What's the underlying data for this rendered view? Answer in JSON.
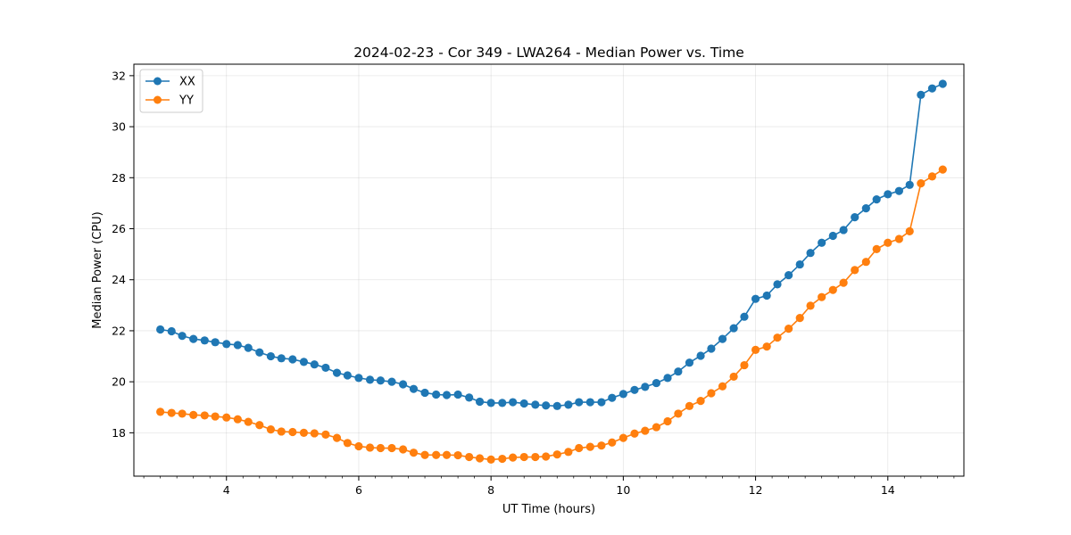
{
  "chart_data": {
    "type": "line",
    "title": "2024-02-23 - Cor 349 - LWA264 - Median Power vs. Time",
    "xlabel": "UT Time (hours)",
    "ylabel": "Median Power (CPU)",
    "xlim": [
      2.6,
      15.15
    ],
    "ylim": [
      16.3,
      32.45
    ],
    "xticks": [
      4,
      6,
      8,
      10,
      12,
      14
    ],
    "xtick_labels": [
      "4",
      "6",
      "8",
      "10",
      "12",
      "14"
    ],
    "yticks": [
      18,
      20,
      22,
      24,
      26,
      28,
      30,
      32
    ],
    "ytick_labels": [
      "18",
      "20",
      "22",
      "24",
      "26",
      "28",
      "30",
      "32"
    ],
    "grid": true,
    "legend_position": "top-left",
    "x": [
      3.0,
      3.17,
      3.33,
      3.5,
      3.67,
      3.83,
      4.0,
      4.17,
      4.33,
      4.5,
      4.67,
      4.83,
      5.0,
      5.17,
      5.33,
      5.5,
      5.67,
      5.83,
      6.0,
      6.17,
      6.33,
      6.5,
      6.67,
      6.83,
      7.0,
      7.17,
      7.33,
      7.5,
      7.67,
      7.83,
      8.0,
      8.17,
      8.33,
      8.5,
      8.67,
      8.83,
      9.0,
      9.17,
      9.33,
      9.5,
      9.67,
      9.83,
      10.0,
      10.17,
      10.33,
      10.5,
      10.67,
      10.83,
      11.0,
      11.17,
      11.33,
      11.5,
      11.67,
      11.83,
      12.0,
      12.17,
      12.33,
      12.5,
      12.67,
      12.83,
      13.0,
      13.17,
      13.33,
      13.5,
      13.67,
      13.83,
      14.0,
      14.17,
      14.33,
      14.5,
      14.67,
      14.83
    ],
    "series": [
      {
        "name": "XX",
        "color": "#1f77b4",
        "values": [
          22.05,
          21.98,
          21.8,
          21.68,
          21.62,
          21.55,
          21.48,
          21.44,
          21.33,
          21.15,
          21.0,
          20.92,
          20.88,
          20.78,
          20.68,
          20.55,
          20.35,
          20.25,
          20.15,
          20.08,
          20.05,
          20.0,
          19.9,
          19.72,
          19.57,
          19.5,
          19.48,
          19.5,
          19.38,
          19.22,
          19.17,
          19.17,
          19.2,
          19.15,
          19.1,
          19.07,
          19.05,
          19.1,
          19.2,
          19.2,
          19.2,
          19.37,
          19.52,
          19.68,
          19.8,
          19.95,
          20.15,
          20.4,
          20.75,
          21.02,
          21.3,
          21.68,
          22.1,
          22.55,
          23.25,
          23.38,
          23.82,
          24.18,
          24.6,
          25.05,
          25.45,
          25.72,
          25.95,
          26.45,
          26.8,
          27.15,
          27.35,
          27.48,
          27.72,
          31.25,
          31.5,
          31.68
        ]
      },
      {
        "name": "YY",
        "color": "#ff7f0e",
        "values": [
          18.82,
          18.78,
          18.75,
          18.7,
          18.68,
          18.64,
          18.6,
          18.53,
          18.43,
          18.3,
          18.13,
          18.05,
          18.03,
          18.0,
          17.98,
          17.93,
          17.8,
          17.6,
          17.47,
          17.42,
          17.4,
          17.4,
          17.35,
          17.22,
          17.13,
          17.13,
          17.13,
          17.12,
          17.05,
          17.0,
          16.95,
          16.98,
          17.03,
          17.05,
          17.05,
          17.07,
          17.15,
          17.25,
          17.4,
          17.45,
          17.5,
          17.62,
          17.8,
          17.97,
          18.08,
          18.22,
          18.45,
          18.75,
          19.05,
          19.25,
          19.55,
          19.82,
          20.2,
          20.65,
          21.25,
          21.38,
          21.73,
          22.08,
          22.5,
          22.98,
          23.32,
          23.6,
          23.88,
          24.38,
          24.7,
          25.2,
          25.45,
          25.6,
          25.9,
          27.78,
          28.05,
          28.32
        ]
      }
    ]
  }
}
